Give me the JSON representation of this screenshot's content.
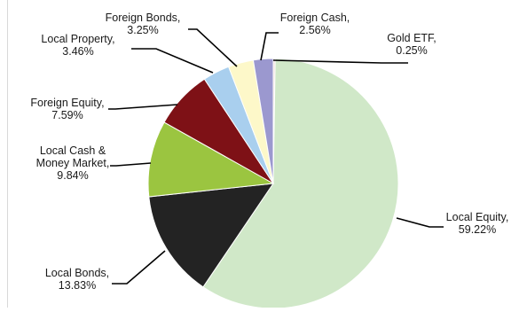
{
  "chart_data": {
    "type": "pie",
    "title": "",
    "start_angle_deg": 90,
    "direction": "clockwise",
    "slices": [
      {
        "label": "Gold ETF,",
        "value_label": "0.25%",
        "value": 0.25,
        "color": "#f2dcdb"
      },
      {
        "label": "Local Equity,",
        "value_label": "59.22%",
        "value": 59.22,
        "color": "#d0e8c8"
      },
      {
        "label": "Local Bonds,",
        "value_label": "13.83%",
        "value": 13.83,
        "color": "#232323"
      },
      {
        "label": "Local Cash &",
        "label2": "Money Market,",
        "value_label": "9.84%",
        "value": 9.84,
        "color": "#9bc540"
      },
      {
        "label": "Foreign Equity,",
        "value_label": "7.59%",
        "value": 7.59,
        "color": "#7e1116"
      },
      {
        "label": "Local Property,",
        "value_label": "3.46%",
        "value": 3.46,
        "color": "#a9cfee"
      },
      {
        "label": "Foreign Bonds,",
        "value_label": "3.25%",
        "value": 3.25,
        "color": "#fdf8c9"
      },
      {
        "label": "Foreign Cash,",
        "value_label": "2.56%",
        "value": 2.56,
        "color": "#9b98cf"
      }
    ]
  }
}
